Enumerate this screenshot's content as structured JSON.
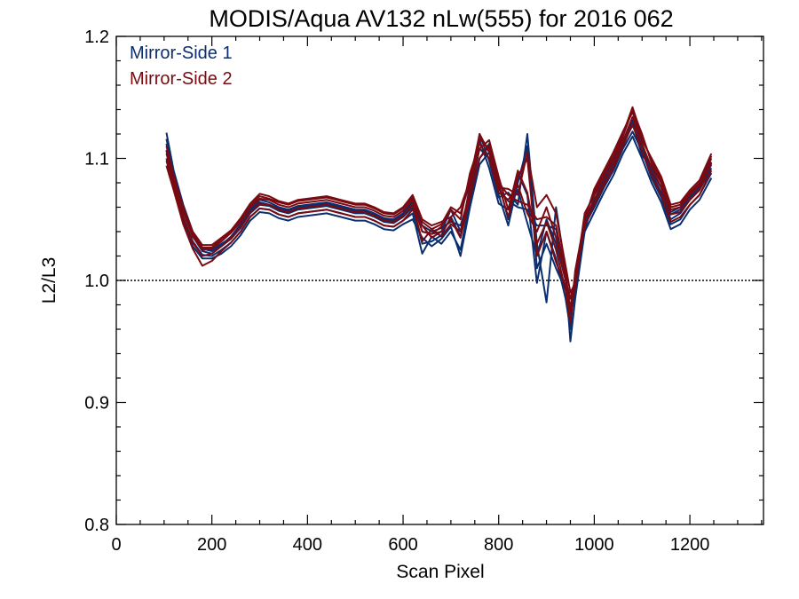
{
  "chart_data": {
    "type": "line",
    "title": "MODIS/Aqua AV132 nLw(555) for 2016 062",
    "xlabel": "Scan Pixel",
    "ylabel": "L2/L3",
    "xlim": [
      0,
      1354
    ],
    "ylim": [
      0.8,
      1.2
    ],
    "x_ticks": [
      0,
      200,
      400,
      600,
      800,
      1000,
      1200
    ],
    "x_tick_labels": [
      "0",
      "200",
      "400",
      "600",
      "800",
      "1000",
      "1200"
    ],
    "y_ticks": [
      0.8,
      0.9,
      1.0,
      1.1,
      1.2
    ],
    "y_tick_labels": [
      "0.8",
      "0.9",
      "1.0",
      "1.1",
      "1.2"
    ],
    "reference_line": {
      "y": 1.0,
      "style": "dotted"
    },
    "grid": false,
    "legend_position": "top-left",
    "colors": {
      "mirror_side_1": "#0b2e6e",
      "mirror_side_2": "#7a0a12"
    },
    "x": [
      105,
      120,
      140,
      160,
      180,
      200,
      220,
      240,
      260,
      280,
      300,
      320,
      340,
      360,
      380,
      400,
      420,
      440,
      460,
      480,
      500,
      520,
      540,
      560,
      580,
      600,
      620,
      640,
      660,
      680,
      700,
      720,
      740,
      760,
      780,
      800,
      820,
      840,
      860,
      880,
      900,
      920,
      940,
      950,
      960,
      980,
      1000,
      1020,
      1040,
      1060,
      1080,
      1100,
      1120,
      1140,
      1160,
      1180,
      1200,
      1220,
      1245
    ],
    "series": [
      {
        "name": "Mirror-Side 1",
        "side": 1,
        "values": [
          1.121,
          1.09,
          1.062,
          1.04,
          1.027,
          1.025,
          1.03,
          1.035,
          1.045,
          1.058,
          1.066,
          1.064,
          1.06,
          1.058,
          1.061,
          1.062,
          1.063,
          1.064,
          1.062,
          1.06,
          1.058,
          1.058,
          1.055,
          1.051,
          1.05,
          1.055,
          1.066,
          1.045,
          1.04,
          1.043,
          1.048,
          1.045,
          1.07,
          1.108,
          1.1,
          1.075,
          1.065,
          1.06,
          1.058,
          1.045,
          1.045,
          1.042,
          1.002,
          0.95,
          0.985,
          1.04,
          1.07,
          1.083,
          1.1,
          1.115,
          1.13,
          1.102,
          1.094,
          1.08,
          1.056,
          1.06,
          1.07,
          1.078,
          1.097
        ]
      },
      {
        "name": "Mirror-Side 1",
        "side": 1,
        "values": [
          1.112,
          1.084,
          1.057,
          1.036,
          1.024,
          1.022,
          1.028,
          1.034,
          1.043,
          1.055,
          1.062,
          1.061,
          1.057,
          1.055,
          1.058,
          1.059,
          1.06,
          1.061,
          1.059,
          1.057,
          1.055,
          1.055,
          1.052,
          1.048,
          1.047,
          1.052,
          1.06,
          1.03,
          1.032,
          1.037,
          1.052,
          1.036,
          1.078,
          1.115,
          1.092,
          1.063,
          1.058,
          1.074,
          1.047,
          1.02,
          1.05,
          1.03,
          1.0,
          0.985,
          0.996,
          1.048,
          1.064,
          1.08,
          1.095,
          1.112,
          1.127,
          1.11,
          1.088,
          1.072,
          1.05,
          1.055,
          1.066,
          1.074,
          1.092
        ]
      },
      {
        "name": "Mirror-Side 1",
        "side": 1,
        "values": [
          1.106,
          1.08,
          1.052,
          1.032,
          1.021,
          1.02,
          1.025,
          1.031,
          1.04,
          1.052,
          1.059,
          1.058,
          1.054,
          1.052,
          1.055,
          1.056,
          1.057,
          1.058,
          1.056,
          1.054,
          1.052,
          1.052,
          1.049,
          1.045,
          1.044,
          1.049,
          1.055,
          1.022,
          1.036,
          1.03,
          1.04,
          1.025,
          1.065,
          1.1,
          1.112,
          1.08,
          1.05,
          1.088,
          1.07,
          0.998,
          1.04,
          1.018,
          0.985,
          0.96,
          1.005,
          1.045,
          1.06,
          1.076,
          1.09,
          1.108,
          1.122,
          1.106,
          1.084,
          1.068,
          1.046,
          1.05,
          1.062,
          1.07,
          1.088
        ]
      },
      {
        "name": "Mirror-Side 1",
        "side": 1,
        "values": [
          1.1,
          1.076,
          1.048,
          1.028,
          1.018,
          1.018,
          1.022,
          1.028,
          1.037,
          1.049,
          1.056,
          1.055,
          1.051,
          1.049,
          1.052,
          1.053,
          1.054,
          1.055,
          1.053,
          1.051,
          1.049,
          1.049,
          1.046,
          1.042,
          1.041,
          1.046,
          1.05,
          1.035,
          1.028,
          1.034,
          1.044,
          1.02,
          1.06,
          1.095,
          1.105,
          1.07,
          1.045,
          1.08,
          1.11,
          1.01,
          1.03,
          1.01,
          0.992,
          0.975,
          1.0,
          1.04,
          1.056,
          1.072,
          1.086,
          1.104,
          1.118,
          1.1,
          1.08,
          1.064,
          1.042,
          1.046,
          1.058,
          1.066,
          1.084
        ]
      },
      {
        "name": "Mirror-Side 1",
        "side": 1,
        "values": [
          1.116,
          1.087,
          1.06,
          1.038,
          1.026,
          1.024,
          1.029,
          1.036,
          1.046,
          1.057,
          1.064,
          1.062,
          1.059,
          1.057,
          1.06,
          1.061,
          1.062,
          1.063,
          1.061,
          1.059,
          1.057,
          1.057,
          1.054,
          1.05,
          1.049,
          1.054,
          1.064,
          1.04,
          1.038,
          1.04,
          1.058,
          1.04,
          1.072,
          1.12,
          1.098,
          1.068,
          1.072,
          1.062,
          1.12,
          1.03,
          0.982,
          1.06,
          1.008,
          0.97,
          0.99,
          1.05,
          1.066,
          1.082,
          1.098,
          1.114,
          1.132,
          1.112,
          1.09,
          1.076,
          1.054,
          1.058,
          1.068,
          1.076,
          1.095
        ]
      },
      {
        "name": "Mirror-Side 2",
        "side": 2,
        "values": [
          1.11,
          1.086,
          1.06,
          1.04,
          1.029,
          1.029,
          1.035,
          1.041,
          1.051,
          1.063,
          1.071,
          1.069,
          1.065,
          1.063,
          1.066,
          1.067,
          1.068,
          1.069,
          1.067,
          1.065,
          1.063,
          1.063,
          1.06,
          1.056,
          1.055,
          1.06,
          1.07,
          1.05,
          1.045,
          1.048,
          1.052,
          1.06,
          1.082,
          1.12,
          1.105,
          1.08,
          1.07,
          1.065,
          1.062,
          1.05,
          1.052,
          1.045,
          1.005,
          0.975,
          0.995,
          1.05,
          1.075,
          1.09,
          1.105,
          1.122,
          1.138,
          1.115,
          1.1,
          1.085,
          1.062,
          1.064,
          1.074,
          1.082,
          1.104
        ]
      },
      {
        "name": "Mirror-Side 2",
        "side": 2,
        "values": [
          1.104,
          1.082,
          1.056,
          1.036,
          1.025,
          1.026,
          1.032,
          1.039,
          1.048,
          1.06,
          1.067,
          1.066,
          1.062,
          1.06,
          1.063,
          1.064,
          1.065,
          1.066,
          1.064,
          1.062,
          1.06,
          1.06,
          1.057,
          1.053,
          1.052,
          1.057,
          1.066,
          1.04,
          1.038,
          1.044,
          1.058,
          1.05,
          1.088,
          1.112,
          1.1,
          1.072,
          1.066,
          1.078,
          1.055,
          1.04,
          1.06,
          1.035,
          1.0,
          0.985,
          1.0,
          1.055,
          1.07,
          1.086,
          1.1,
          1.118,
          1.14,
          1.12,
          1.096,
          1.08,
          1.058,
          1.06,
          1.07,
          1.078,
          1.1
        ]
      },
      {
        "name": "Mirror-Side 2",
        "side": 2,
        "values": [
          1.098,
          1.078,
          1.051,
          1.031,
          1.02,
          1.022,
          1.028,
          1.035,
          1.044,
          1.056,
          1.063,
          1.062,
          1.058,
          1.056,
          1.059,
          1.06,
          1.061,
          1.062,
          1.06,
          1.058,
          1.056,
          1.056,
          1.053,
          1.049,
          1.048,
          1.053,
          1.062,
          1.032,
          1.042,
          1.036,
          1.046,
          1.04,
          1.075,
          1.108,
          1.115,
          1.085,
          1.058,
          1.09,
          1.072,
          1.03,
          1.048,
          1.025,
          0.992,
          0.965,
          1.008,
          1.05,
          1.066,
          1.082,
          1.096,
          1.114,
          1.134,
          1.112,
          1.092,
          1.076,
          1.054,
          1.056,
          1.066,
          1.074,
          1.096
        ]
      },
      {
        "name": "Mirror-Side 2",
        "side": 2,
        "values": [
          1.094,
          1.074,
          1.046,
          1.026,
          1.012,
          1.016,
          1.024,
          1.031,
          1.04,
          1.052,
          1.059,
          1.058,
          1.054,
          1.052,
          1.055,
          1.056,
          1.057,
          1.058,
          1.056,
          1.054,
          1.052,
          1.052,
          1.049,
          1.045,
          1.044,
          1.049,
          1.058,
          1.045,
          1.035,
          1.04,
          1.05,
          1.035,
          1.068,
          1.1,
          1.11,
          1.078,
          1.052,
          1.085,
          1.1,
          1.02,
          1.04,
          1.015,
          0.995,
          0.978,
          1.004,
          1.045,
          1.062,
          1.078,
          1.092,
          1.11,
          1.128,
          1.106,
          1.086,
          1.07,
          1.048,
          1.052,
          1.062,
          1.07,
          1.09
        ]
      },
      {
        "name": "Mirror-Side 2",
        "side": 2,
        "values": [
          1.107,
          1.084,
          1.058,
          1.038,
          1.027,
          1.027,
          1.034,
          1.04,
          1.05,
          1.061,
          1.069,
          1.067,
          1.064,
          1.062,
          1.065,
          1.066,
          1.067,
          1.068,
          1.066,
          1.064,
          1.062,
          1.062,
          1.059,
          1.055,
          1.054,
          1.059,
          1.068,
          1.048,
          1.042,
          1.046,
          1.06,
          1.055,
          1.08,
          1.116,
          1.108,
          1.076,
          1.075,
          1.07,
          1.105,
          1.06,
          1.07,
          1.055,
          1.012,
          0.99,
          0.998,
          1.052,
          1.072,
          1.088,
          1.102,
          1.12,
          1.142,
          1.118,
          1.098,
          1.082,
          1.06,
          1.062,
          1.072,
          1.08,
          1.102
        ]
      }
    ]
  }
}
